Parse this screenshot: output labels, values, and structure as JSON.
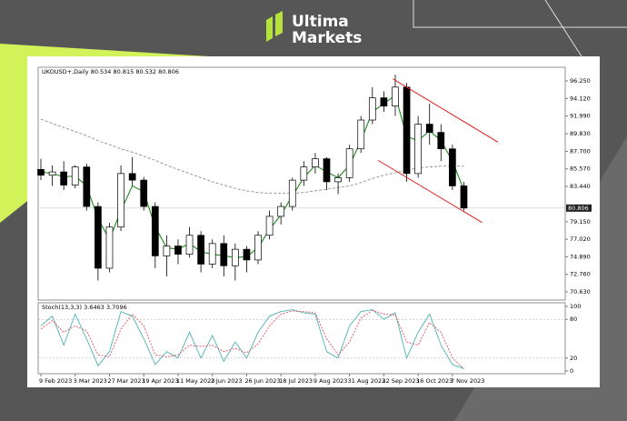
{
  "brand": {
    "name_top": "Ultima",
    "name_bottom": "Markets"
  },
  "chart_data": [
    {
      "type": "candlestick",
      "title": "UKOUSD+,Daily  80.534 80.815 80.532 80.806",
      "categories": [
        "9 Feb 2023",
        null,
        null,
        "3 Mar 2023",
        null,
        null,
        "27 Mar 2023",
        null,
        null,
        "19 Apr 2023",
        null,
        null,
        "11 May 2023",
        null,
        null,
        "2 Jun 2023",
        null,
        null,
        "26 Jun 2023",
        null,
        null,
        "18 Jul 2023",
        null,
        null,
        "9 Aug 2023",
        null,
        null,
        "31 Aug 2023",
        null,
        null,
        "22 Sep 2023",
        null,
        null,
        "16 Oct 2023",
        null,
        null,
        "7 Nov 2023",
        null
      ],
      "open": [
        85.5,
        84.8,
        85.2,
        83.6,
        85.8,
        81.0,
        73.5,
        78.5,
        85.0,
        84.2,
        81.0,
        75.0,
        76.2,
        75.2,
        77.5,
        74.0,
        76.5,
        73.8,
        75.8,
        74.5,
        77.5,
        79.8,
        81.0,
        84.2,
        85.8,
        86.8,
        84.0,
        84.5,
        88.0,
        91.5,
        94.2,
        93.2,
        95.5,
        85.0,
        91.0,
        90.0,
        88.0,
        83.5
      ],
      "high": [
        86.8,
        86.0,
        86.5,
        86.0,
        86.2,
        81.5,
        79.0,
        86.0,
        87.0,
        84.6,
        81.5,
        77.5,
        77.0,
        78.5,
        78.0,
        77.0,
        77.5,
        76.5,
        76.2,
        78.0,
        80.5,
        81.5,
        84.5,
        86.5,
        87.5,
        87.0,
        85.0,
        88.5,
        92.0,
        95.5,
        95.0,
        97.0,
        96.0,
        92.0,
        93.5,
        91.0,
        88.5,
        84.0
      ],
      "low": [
        84.2,
        83.5,
        83.0,
        83.2,
        80.5,
        72.0,
        73.0,
        78.0,
        83.5,
        80.5,
        73.5,
        72.5,
        74.0,
        74.8,
        73.0,
        73.5,
        72.5,
        72.0,
        73.0,
        74.0,
        77.0,
        78.8,
        80.5,
        83.5,
        85.0,
        83.0,
        82.5,
        84.0,
        87.5,
        91.0,
        92.5,
        92.0,
        84.0,
        84.5,
        88.5,
        86.5,
        83.0,
        80.5
      ],
      "close": [
        84.8,
        85.2,
        83.6,
        85.8,
        81.0,
        73.5,
        78.5,
        85.0,
        84.2,
        81.0,
        75.0,
        76.2,
        75.2,
        77.5,
        74.0,
        76.5,
        73.8,
        75.8,
        74.5,
        77.5,
        79.8,
        81.0,
        84.2,
        85.8,
        86.8,
        84.0,
        84.5,
        88.0,
        91.5,
        94.2,
        93.2,
        95.5,
        85.0,
        91.0,
        90.0,
        88.0,
        83.5,
        80.806
      ],
      "ma_fast": {
        "color": "#1a8a1a",
        "values": [
          85.2,
          85.0,
          84.6,
          84.7,
          83.5,
          79.5,
          77.0,
          80.5,
          83.5,
          82.8,
          78.5,
          76.0,
          75.8,
          76.5,
          75.5,
          75.2,
          75.0,
          74.8,
          74.9,
          76.0,
          78.2,
          80.0,
          82.3,
          84.5,
          86.0,
          85.2,
          84.5,
          86.0,
          89.0,
          92.5,
          93.5,
          94.5,
          89.5,
          89.0,
          90.2,
          89.0,
          86.5,
          83.0
        ]
      },
      "ma_slow": {
        "color": "#8c8c8c",
        "values": [
          91.6,
          91.1,
          90.6,
          90.1,
          89.6,
          89.0,
          88.5,
          88.0,
          87.6,
          87.1,
          86.6,
          86.0,
          85.5,
          85.0,
          84.5,
          84.0,
          83.6,
          83.2,
          82.9,
          82.7,
          82.6,
          82.6,
          82.6,
          82.7,
          82.9,
          83.1,
          83.3,
          83.5,
          83.9,
          84.4,
          84.8,
          85.1,
          85.4,
          85.7,
          85.8,
          85.9,
          85.9,
          85.9
        ]
      },
      "channel": [
        {
          "color": "#e02020",
          "x": [
            30.8,
            40.0
          ],
          "y": [
            96.5,
            88.8
          ]
        },
        {
          "color": "#e02020",
          "x": [
            29.5,
            38.6
          ],
          "y": [
            86.6,
            79.05
          ]
        }
      ],
      "bull_color": "#ffffff",
      "bear_color": "#000000",
      "current_price": 80.806,
      "ylim": [
        69.63,
        97.91
      ],
      "yticks": [
        {
          "value": 96.25,
          "label": "96.250"
        },
        {
          "value": 94.12,
          "label": "94.120"
        },
        {
          "value": 91.99,
          "label": "91.990"
        },
        {
          "value": 89.83,
          "label": "89.830"
        },
        {
          "value": 87.7,
          "label": "87.700"
        },
        {
          "value": 85.57,
          "label": "85.570"
        },
        {
          "value": 83.44,
          "label": "83.440"
        },
        {
          "value": 79.15,
          "label": "79.150"
        },
        {
          "value": 77.02,
          "label": "77.020"
        },
        {
          "value": 74.89,
          "label": "74.890"
        },
        {
          "value": 72.76,
          "label": "72.760"
        },
        {
          "value": 70.63,
          "label": "70.630"
        }
      ]
    },
    {
      "type": "line",
      "title": "Stoch(13,3,3) 3.6463 3.7096",
      "series": [
        {
          "color": "#4fb3b3",
          "values": [
            70,
            85,
            40,
            88,
            50,
            8,
            30,
            92,
            85,
            50,
            10,
            30,
            20,
            60,
            20,
            55,
            15,
            45,
            20,
            60,
            85,
            92,
            95,
            90,
            88,
            30,
            20,
            70,
            92,
            95,
            80,
            90,
            20,
            60,
            88,
            40,
            10,
            3.6463
          ]
        },
        {
          "color": "#e05060",
          "values": [
            65,
            78,
            60,
            70,
            62,
            25,
            22,
            65,
            88,
            70,
            25,
            22,
            25,
            40,
            38,
            40,
            30,
            35,
            28,
            42,
            70,
            88,
            93,
            92,
            90,
            50,
            25,
            45,
            82,
            94,
            88,
            87,
            45,
            40,
            75,
            60,
            20,
            3.7096
          ]
        }
      ],
      "ylim": [
        0,
        100
      ],
      "yticks": [
        0,
        20,
        80,
        100
      ]
    }
  ]
}
